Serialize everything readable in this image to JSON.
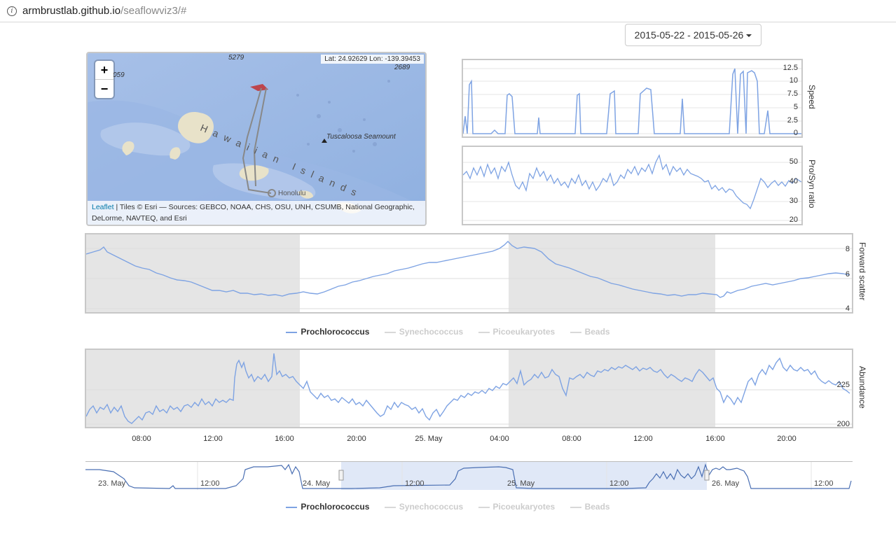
{
  "browser": {
    "url_host": "armbrustlab.github.io",
    "url_path": "/seaflowviz3/#"
  },
  "date_range": {
    "label": "2015-05-22 - 2015-05-26"
  },
  "map": {
    "zoom_in": "+",
    "zoom_out": "−",
    "latlon": "Lat: 24.92629 Lon: -139.39453",
    "labels": {
      "depth_a": "5279",
      "depth_b": "059",
      "depth_c": "2689",
      "islands": "Hawaiian Islands",
      "seamount": "Tuscaloosa Seamount",
      "city": "Honolulu"
    },
    "attribution_link": "Leaflet",
    "attribution_text": " | Tiles © Esri — Sources: GEBCO, NOAA, CHS, OSU, UNH, CSUMB, National Geographic, DeLorme, NAVTEQ, and Esri"
  },
  "charts": {
    "speed": {
      "ylabel": "Speed",
      "ticks": [
        "12.5",
        "10",
        "7.5",
        "5",
        "2.5",
        "0"
      ]
    },
    "prosyn": {
      "ylabel": "Pro/Syn ratio",
      "ticks": [
        "50",
        "40",
        "30",
        "20"
      ]
    },
    "fsc": {
      "ylabel": "Forward scatter",
      "ticks": [
        "8",
        "6",
        "4"
      ]
    },
    "abundance": {
      "ylabel": "Abundance",
      "ticks": [
        "225",
        "200"
      ]
    },
    "xaxis": [
      "08:00",
      "12:00",
      "16:00",
      "20:00",
      "25. May",
      "04:00",
      "08:00",
      "12:00",
      "16:00",
      "20:00"
    ],
    "navigator_ticks": [
      "23. May",
      "12:00",
      "24. May",
      "12:00",
      "25. May",
      "12:00",
      "26. May",
      "12:00"
    ]
  },
  "legend": [
    {
      "label": "Prochlorococcus",
      "active": true
    },
    {
      "label": "Synechococcus",
      "active": false
    },
    {
      "label": "Picoeukaryotes",
      "active": false
    },
    {
      "label": "Beads",
      "active": false
    }
  ],
  "colors": {
    "series": "#7ea3e3",
    "night_band": "#e5e5e5",
    "cruise_track": "#c0393b",
    "navigator_fill": "#dbe4f6"
  }
}
